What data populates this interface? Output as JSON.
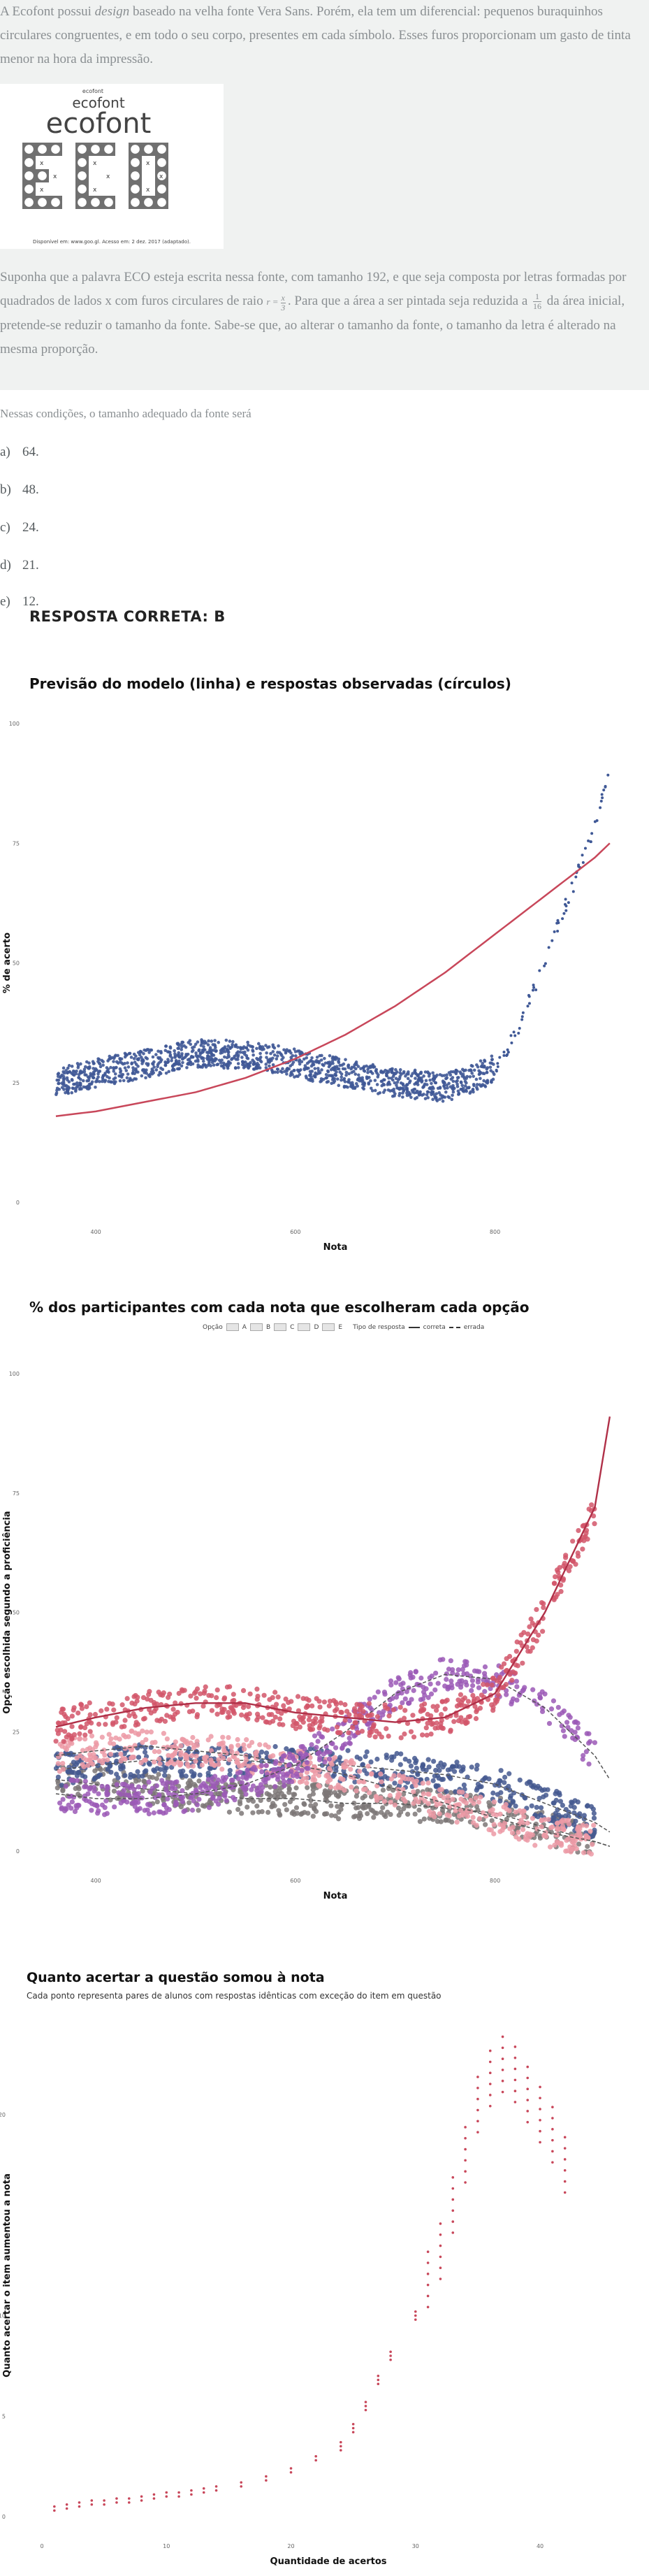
{
  "question": {
    "para1_a": "A Ecofont possui ",
    "para1_italic": "design",
    "para1_b": " baseado na velha fonte Vera Sans. Porém, ela tem um diferencial: pequenos buraquinhos circulares congruentes, e em todo o seu corpo, presentes em cada símbolo. Esses furos proporcionam um gasto de tinta menor na hora da impressão.",
    "logo": {
      "small": "ecofont",
      "medium": "ecofont",
      "big": "ecofont",
      "letters": "ECO",
      "x_label": "x",
      "source": "Disponível em: www.goo.gl. Acesso em: 2 dez. 2017 (adaptado)."
    },
    "para2_a": "Suponha que a palavra ECO esteja escrita nessa fonte, com tamanho 192, e que seja composta por letras formadas por quadrados de lados x com furos circulares de raio ",
    "formula_r": "r =",
    "formula_num": "x",
    "formula_den": "3",
    "para2_b": ". Para que a área a ser pintada seja reduzida a ",
    "frac_num": "1",
    "frac_den": "16",
    "para2_c": " da área inicial, pretende-se reduzir o tamanho da fonte. Sabe-se que, ao alterar o tamanho da fonte, o tamanho da letra é alterado na mesma proporção.",
    "lead": "Nessas condições, o tamanho adequado da fonte será",
    "options": [
      {
        "letter": "a)",
        "text": "64."
      },
      {
        "letter": "b)",
        "text": "48."
      },
      {
        "letter": "c)",
        "text": "24."
      },
      {
        "letter": "d)",
        "text": "21."
      },
      {
        "letter": "e)",
        "text": "12."
      }
    ],
    "answer": "RESPOSTA CORRETA: B"
  },
  "charts": [
    {
      "chart_data": {
        "type": "scatter",
        "title": "Previsão do modelo (linha) e respostas observadas (círculos)",
        "xlabel": "Nota",
        "ylabel": "% de acerto",
        "x_ticks": [
          "400",
          "600",
          "800"
        ],
        "y_ticks": [
          "0",
          "25",
          "50",
          "75",
          "100"
        ],
        "xlim": [
          360,
          920
        ],
        "ylim": [
          0,
          100
        ],
        "series": [
          {
            "kind": "points",
            "color": "#3f5896",
            "x": [
              360,
              400,
              450,
              500,
              550,
              600,
              650,
              700,
              750,
              780,
              800,
              820,
              840,
              860,
              880,
              900,
              915
            ],
            "y": [
              25,
              27,
              29,
              31,
              31,
              29,
              27,
              25,
              24,
              26,
              28,
              35,
              45,
              56,
              67,
              79,
              92
            ]
          },
          {
            "kind": "line",
            "color": "#c8475a",
            "x": [
              360,
              400,
              450,
              500,
              550,
              600,
              650,
              700,
              750,
              800,
              850,
              900,
              915
            ],
            "y": [
              18,
              19,
              21,
              23,
              26,
              30,
              35,
              41,
              48,
              56,
              64,
              72,
              75
            ]
          }
        ]
      }
    },
    {
      "chart_data": {
        "type": "scatter",
        "title": "% dos participantes com cada nota que escolheram cada opção",
        "xlabel": "Nota",
        "ylabel": "Opção escolhida segundo a proficiência",
        "x_ticks": [
          "400",
          "600",
          "800"
        ],
        "y_ticks": [
          "0",
          "25",
          "50",
          "75",
          "100"
        ],
        "xlim": [
          360,
          920
        ],
        "ylim": [
          0,
          100
        ],
        "legend": {
          "option_label": "Opção",
          "options": [
            "A",
            "B",
            "C",
            "D",
            "E"
          ],
          "type_label": "Tipo de resposta",
          "types": [
            "correta",
            "errada"
          ]
        },
        "series": [
          {
            "name": "B",
            "color": "#d2566a",
            "x": [
              360,
              400,
              450,
              500,
              550,
              600,
              650,
              700,
              750,
              800,
              850,
              900,
              915
            ],
            "y": [
              26,
              28,
              30,
              31,
              31,
              29,
              28,
              27,
              28,
              33,
              50,
              72,
              91
            ]
          },
          {
            "name": "D",
            "color": "#9b59b6",
            "x": [
              360,
              400,
              450,
              500,
              550,
              600,
              650,
              700,
              750,
              800,
              850,
              900,
              915
            ],
            "y": [
              12,
              11,
              11,
              12,
              14,
              18,
              25,
              33,
              37,
              36,
              30,
              20,
              15
            ]
          },
          {
            "name": "C",
            "color": "#44588f",
            "x": [
              360,
              400,
              450,
              500,
              550,
              600,
              650,
              700,
              750,
              800,
              850,
              900,
              915
            ],
            "y": [
              17,
              18,
              19,
              19,
              19,
              18,
              18,
              17,
              16,
              14,
              10,
              6,
              4
            ]
          },
          {
            "name": "A",
            "color": "#ec9aa6",
            "x": [
              360,
              400,
              450,
              500,
              550,
              600,
              650,
              700,
              750,
              800,
              850,
              900,
              915
            ],
            "y": [
              20,
              21,
              22,
              21,
              20,
              18,
              16,
              13,
              10,
              7,
              4,
              2,
              1
            ]
          },
          {
            "name": "E",
            "color": "#7d7777",
            "x": [
              360,
              400,
              450,
              500,
              550,
              600,
              650,
              700,
              750,
              800,
              850,
              900,
              915
            ],
            "y": [
              15,
              14,
              13,
              12,
              11,
              11,
              10,
              10,
              9,
              8,
              5,
              2,
              1
            ]
          }
        ]
      }
    },
    {
      "chart_data": {
        "type": "scatter",
        "title": "Quanto acertar a questão somou à nota",
        "subtitle": "Cada ponto representa pares de alunos com respostas idênticas com exceção do item em questão",
        "xlabel": "Quantidade de acertos",
        "ylabel": "Quanto acertar o item aumentou a nota",
        "x_ticks": [
          "0",
          "10",
          "20",
          "30",
          "40"
        ],
        "y_ticks": [
          "0",
          "5",
          "10",
          "20"
        ],
        "xlim": [
          0,
          46
        ],
        "ylim": [
          0,
          24
        ],
        "points": {
          "color": "#c8475a",
          "x": [
            1,
            2,
            3,
            4,
            5,
            6,
            7,
            8,
            9,
            10,
            11,
            12,
            13,
            14,
            16,
            18,
            20,
            22,
            24,
            25,
            26,
            27,
            28,
            30,
            31,
            32,
            33,
            34,
            35,
            36,
            37,
            38,
            39,
            40,
            41,
            42
          ],
          "y": [
            0.4,
            0.5,
            0.6,
            0.7,
            0.7,
            0.8,
            0.8,
            0.9,
            1.0,
            1.1,
            1.1,
            1.2,
            1.3,
            1.4,
            1.6,
            1.9,
            2.3,
            2.9,
            3.5,
            4.4,
            5.5,
            6.8,
            8.0,
            10.0,
            11.8,
            13.2,
            15.5,
            18.0,
            20.5,
            21.8,
            22.5,
            22.0,
            21.0,
            20.0,
            19.0,
            17.5
          ]
        }
      }
    }
  ]
}
